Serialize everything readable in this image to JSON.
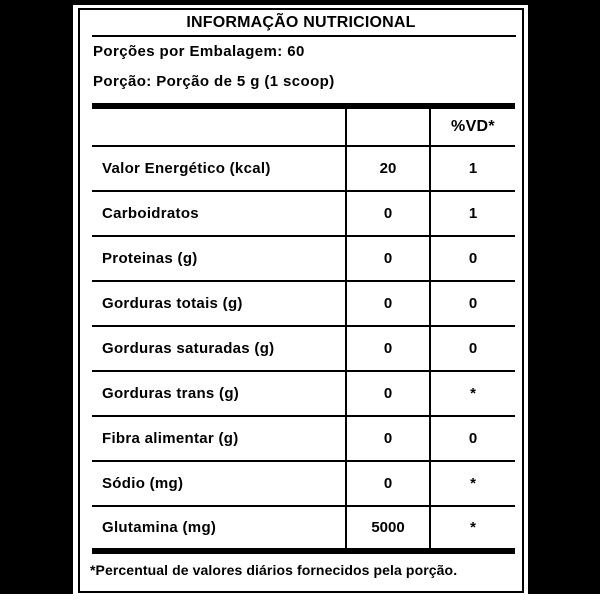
{
  "colors": {
    "ink": "#000000",
    "paper": "#ffffff",
    "backdrop": "#000000"
  },
  "label": {
    "title": "INFORMAÇÃO NUTRICIONAL",
    "servings_per_package": "Porções por Embalagem: 60",
    "portion": "Porção: Porção de 5 g (1 scoop)",
    "table": {
      "columns": [
        "",
        "",
        "%VD*"
      ],
      "rows": [
        {
          "name": "Valor Energético (kcal)",
          "amount": "20",
          "vd": "1"
        },
        {
          "name": "Carboidratos",
          "amount": "0",
          "vd": "1"
        },
        {
          "name": "Proteinas (g)",
          "amount": "0",
          "vd": "0"
        },
        {
          "name": "Gorduras totais (g)",
          "amount": "0",
          "vd": "0"
        },
        {
          "name": "Gorduras saturadas (g)",
          "amount": "0",
          "vd": "0"
        },
        {
          "name": "Gorduras trans (g)",
          "amount": "0",
          "vd": "*"
        },
        {
          "name": "Fibra alimentar (g)",
          "amount": "0",
          "vd": "0"
        },
        {
          "name": "Sódio (mg)",
          "amount": "0",
          "vd": "*"
        },
        {
          "name": "Glutamina (mg)",
          "amount": "5000",
          "vd": "*"
        }
      ]
    },
    "footnote": "*Percentual de valores diários fornecidos pela porção."
  }
}
